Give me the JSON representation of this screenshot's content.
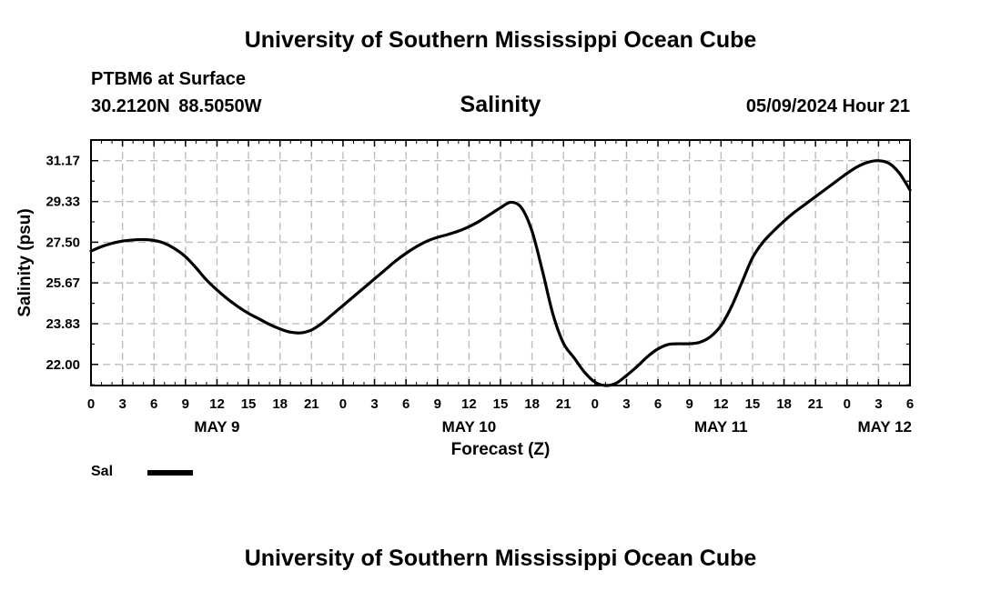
{
  "header": {
    "title": "University of Southern Mississippi Ocean Cube",
    "station": "PTBM6 at Surface",
    "coordinates": "30.2120N  88.5050W",
    "chart_title": "Salinity",
    "date_hour": "05/09/2024 Hour 21"
  },
  "footer": {
    "title": "University of Southern Mississippi Ocean Cube"
  },
  "legend": {
    "label": "Sal"
  },
  "chart_data": {
    "type": "line",
    "title": "Salinity",
    "xlabel": "Forecast (Z)",
    "ylabel": "Salinity (psu)",
    "xlim": [
      0,
      78
    ],
    "ylim": [
      21.05,
      32.1
    ],
    "yticks": [
      22.0,
      23.83,
      25.67,
      27.5,
      29.33,
      31.17
    ],
    "ytick_labels": [
      "22.00",
      "23.83",
      "25.67",
      "27.50",
      "29.33",
      "31.17"
    ],
    "xticks": [
      0,
      3,
      6,
      9,
      12,
      15,
      18,
      21,
      24,
      27,
      30,
      33,
      36,
      39,
      42,
      45,
      48,
      51,
      54,
      57,
      60,
      63,
      66,
      69,
      72,
      75,
      78
    ],
    "xtick_labels": [
      "0",
      "3",
      "6",
      "9",
      "12",
      "15",
      "18",
      "21",
      "0",
      "3",
      "6",
      "9",
      "12",
      "15",
      "18",
      "21",
      "0",
      "3",
      "6",
      "9",
      "12",
      "15",
      "18",
      "21",
      "0",
      "3",
      "6"
    ],
    "day_labels": [
      {
        "hour": 12,
        "label": "MAY 9"
      },
      {
        "hour": 36,
        "label": "MAY 10"
      },
      {
        "hour": 60,
        "label": "MAY 11"
      },
      {
        "hour": 78,
        "label": "MAY 12"
      }
    ],
    "grid": true,
    "series": [
      {
        "name": "Sal",
        "color": "#000000",
        "x": [
          0,
          1,
          2,
          3,
          4,
          5,
          6,
          7,
          8,
          9,
          10,
          11,
          12,
          13,
          14,
          15,
          16,
          17,
          18,
          19,
          20,
          21,
          22,
          23,
          24,
          25,
          26,
          27,
          28,
          29,
          30,
          31,
          32,
          33,
          34,
          35,
          36,
          37,
          38,
          39,
          40,
          41,
          42,
          43,
          44,
          45,
          46,
          47,
          48,
          49,
          50,
          51,
          52,
          53,
          54,
          55,
          56,
          57,
          58,
          59,
          60,
          61,
          62,
          63,
          64,
          65,
          66,
          67,
          68,
          69,
          70,
          71,
          72,
          73,
          74,
          75,
          76,
          77,
          78
        ],
        "values": [
          27.1,
          27.3,
          27.45,
          27.55,
          27.6,
          27.62,
          27.58,
          27.45,
          27.2,
          26.85,
          26.35,
          25.8,
          25.35,
          24.95,
          24.6,
          24.3,
          24.05,
          23.8,
          23.6,
          23.45,
          23.42,
          23.55,
          23.85,
          24.25,
          24.65,
          25.05,
          25.45,
          25.85,
          26.25,
          26.65,
          27.0,
          27.3,
          27.55,
          27.72,
          27.85,
          28.0,
          28.2,
          28.45,
          28.75,
          29.05,
          29.3,
          29.05,
          28.0,
          26.2,
          24.25,
          22.95,
          22.3,
          21.65,
          21.2,
          21.05,
          21.15,
          21.5,
          21.9,
          22.35,
          22.7,
          22.9,
          22.93,
          22.93,
          23.0,
          23.25,
          23.75,
          24.6,
          25.7,
          26.8,
          27.5,
          28.0,
          28.45,
          28.85,
          29.2,
          29.55,
          29.9,
          30.25,
          30.6,
          30.9,
          31.1,
          31.17,
          31.05,
          30.6,
          29.85
        ]
      }
    ]
  }
}
